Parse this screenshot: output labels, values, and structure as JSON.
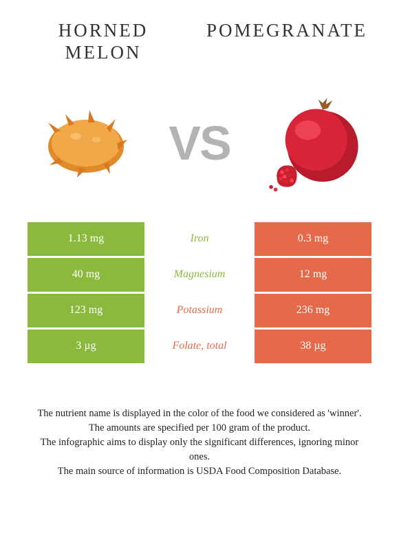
{
  "titles": {
    "left": "HORNED MELON",
    "right": "POMEGRANATE"
  },
  "vs_label": "VS",
  "colors": {
    "left_bg": "#8bb93e",
    "right_bg": "#e46a4a",
    "left_text": "#8bb93e",
    "right_text": "#e46a4a"
  },
  "rows": [
    {
      "left": "1.13 mg",
      "name": "Iron",
      "right": "0.3 mg",
      "winner": "left"
    },
    {
      "left": "40 mg",
      "name": "Magnesium",
      "right": "12 mg",
      "winner": "left"
    },
    {
      "left": "123 mg",
      "name": "Potassium",
      "right": "236 mg",
      "winner": "right"
    },
    {
      "left": "3 µg",
      "name": "Folate, total",
      "right": "38 µg",
      "winner": "right"
    }
  ],
  "footer_lines": [
    "The nutrient name is displayed in the color of the food we considered as 'winner'.",
    "The amounts are specified per 100 gram of the product.",
    "The infographic aims to display only the significant differences, ignoring minor ones.",
    "The main source of information is USDA Food Composition Database."
  ]
}
